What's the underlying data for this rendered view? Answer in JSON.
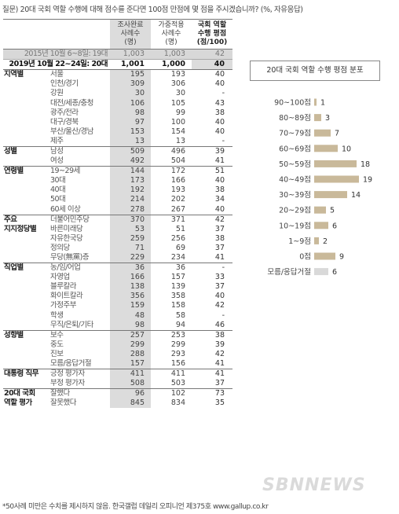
{
  "question": "질문) 20대 국회 역할 수행에 대해 점수를 준다면 100점 만점에 몇 점을 주시겠습니까? (%, 자유응답)",
  "headers": {
    "n": "조사완료\n사례수\n(명)",
    "w": "가중적용\n사례수\n(명)",
    "score": "국회 역할\n수행 평점\n(점/100)"
  },
  "prev": {
    "label": "2015년 10월 6~8일: 19대",
    "n": "1,003",
    "w": "1,003",
    "score": "42"
  },
  "cur": {
    "label": "2019년 10월 22~24일: 20대",
    "n": "1,001",
    "w": "1,000",
    "score": "40"
  },
  "groups": [
    {
      "name": "지역별",
      "rows": [
        {
          "sub": "서울",
          "n": "195",
          "w": "193",
          "score": "40"
        },
        {
          "sub": "인천/경기",
          "n": "309",
          "w": "306",
          "score": "40"
        },
        {
          "sub": "강원",
          "n": "30",
          "w": "30",
          "score": "-"
        },
        {
          "sub": "대전/세종/충청",
          "n": "106",
          "w": "105",
          "score": "43"
        },
        {
          "sub": "광주/전라",
          "n": "98",
          "w": "99",
          "score": "38"
        },
        {
          "sub": "대구/경북",
          "n": "97",
          "w": "100",
          "score": "40"
        },
        {
          "sub": "부산/울산/경남",
          "n": "153",
          "w": "154",
          "score": "40"
        },
        {
          "sub": "제주",
          "n": "13",
          "w": "13",
          "score": "-"
        }
      ]
    },
    {
      "name": "성별",
      "rows": [
        {
          "sub": "남성",
          "n": "509",
          "w": "496",
          "score": "39"
        },
        {
          "sub": "여성",
          "n": "492",
          "w": "504",
          "score": "41"
        }
      ]
    },
    {
      "name": "연령별",
      "rows": [
        {
          "sub": "19~29세",
          "n": "144",
          "w": "172",
          "score": "51"
        },
        {
          "sub": "30대",
          "n": "173",
          "w": "166",
          "score": "40"
        },
        {
          "sub": "40대",
          "n": "192",
          "w": "193",
          "score": "38"
        },
        {
          "sub": "50대",
          "n": "214",
          "w": "202",
          "score": "34"
        },
        {
          "sub": "60세 이상",
          "n": "278",
          "w": "267",
          "score": "40"
        }
      ]
    },
    {
      "name": "주요\n지지정당별",
      "rows": [
        {
          "sub": "더불어민주당",
          "n": "370",
          "w": "371",
          "score": "42"
        },
        {
          "sub": "바른미래당",
          "n": "53",
          "w": "51",
          "score": "37"
        },
        {
          "sub": "자유한국당",
          "n": "259",
          "w": "256",
          "score": "38"
        },
        {
          "sub": "정의당",
          "n": "71",
          "w": "69",
          "score": "37"
        },
        {
          "sub": "무당(無黨)층",
          "n": "229",
          "w": "234",
          "score": "41"
        }
      ]
    },
    {
      "name": "직업별",
      "rows": [
        {
          "sub": "농/임/어업",
          "n": "36",
          "w": "36",
          "score": "-"
        },
        {
          "sub": "자영업",
          "n": "166",
          "w": "157",
          "score": "33"
        },
        {
          "sub": "블루칼라",
          "n": "138",
          "w": "139",
          "score": "37"
        },
        {
          "sub": "화이트칼라",
          "n": "356",
          "w": "358",
          "score": "40"
        },
        {
          "sub": "가정주부",
          "n": "159",
          "w": "158",
          "score": "42"
        },
        {
          "sub": "학생",
          "n": "48",
          "w": "58",
          "score": "-"
        },
        {
          "sub": "무직/은퇴/기타",
          "n": "98",
          "w": "94",
          "score": "46"
        }
      ]
    },
    {
      "name": "성향별",
      "rows": [
        {
          "sub": "보수",
          "n": "257",
          "w": "253",
          "score": "38"
        },
        {
          "sub": "중도",
          "n": "299",
          "w": "299",
          "score": "39"
        },
        {
          "sub": "진보",
          "n": "288",
          "w": "293",
          "score": "42"
        },
        {
          "sub": "모름/응답거절",
          "n": "157",
          "w": "156",
          "score": "41"
        }
      ]
    },
    {
      "name": "대통령 직무",
      "rows": [
        {
          "sub": "긍정 평가자",
          "n": "411",
          "w": "411",
          "score": "41"
        },
        {
          "sub": "부정 평가자",
          "n": "508",
          "w": "503",
          "score": "37"
        }
      ]
    },
    {
      "name": "20대 국회\n역할 평가",
      "rows": [
        {
          "sub": "잘했다",
          "n": "96",
          "w": "102",
          "score": "73"
        },
        {
          "sub": "잘못했다",
          "n": "845",
          "w": "834",
          "score": "35"
        }
      ]
    }
  ],
  "footer": "*50사례 미만은 수치를 제시하지 않음. 한국갤럽 데일리 오피니언 제375호 www.gallup.co.kr",
  "watermark": "SBNNEWS",
  "chart_data": {
    "type": "bar",
    "title": "20대 국회 역할 수행 평점 분포",
    "categories": [
      "90~100점",
      "80~89점",
      "70~79점",
      "60~69점",
      "50~59점",
      "40~49점",
      "30~39점",
      "20~29점",
      "10~19점",
      "1~9점",
      "0점",
      "모름/응답거절"
    ],
    "values": [
      1,
      3,
      7,
      10,
      18,
      19,
      14,
      5,
      6,
      2,
      9,
      6
    ],
    "highlight_last": true,
    "colors": {
      "bar": "#c9b99a",
      "last": "#d9d9d9"
    }
  }
}
